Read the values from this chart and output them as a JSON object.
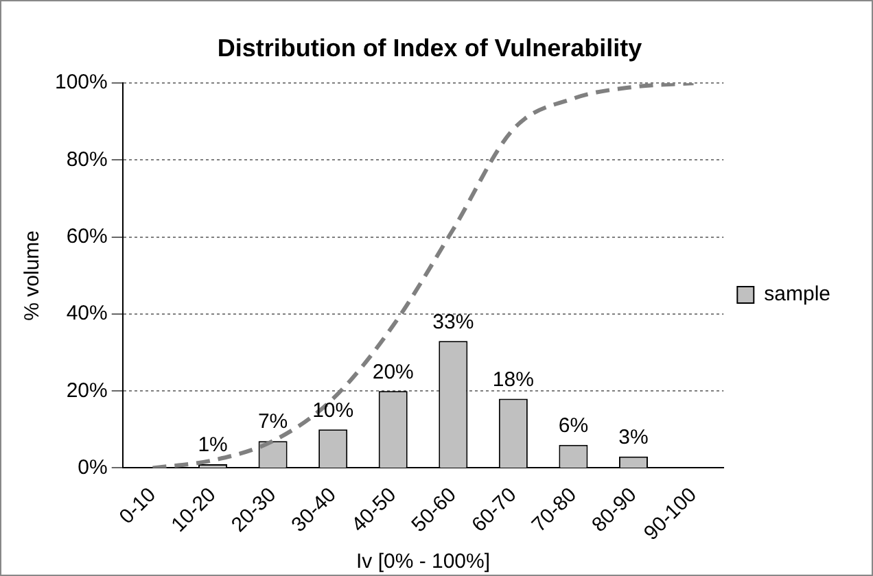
{
  "chart_data": {
    "type": "bar",
    "title": "Distribution of Index of Vulnerability",
    "xlabel": "Iv [0% - 100%]",
    "ylabel": "% volume",
    "categories": [
      "0-10",
      "10-20",
      "20-30",
      "30-40",
      "40-50",
      "50-60",
      "60-70",
      "70-80",
      "80-90",
      "90-100"
    ],
    "series": [
      {
        "name": "sample",
        "color": "#c0c0c0",
        "values": [
          0,
          1,
          7,
          10,
          20,
          33,
          18,
          6,
          3,
          0
        ],
        "value_labels": [
          null,
          "1%",
          "7%",
          "10%",
          "20%",
          "33%",
          "18%",
          "6%",
          "3%",
          null
        ]
      },
      {
        "type": "line",
        "color": "#808080",
        "line_style": "dashed",
        "marker": "none",
        "values": [
          0,
          2,
          7,
          18,
          37,
          62,
          88,
          96,
          99,
          100
        ]
      }
    ],
    "ylim": [
      0,
      100
    ],
    "yticks": [
      {
        "value": 0,
        "label": "0%"
      },
      {
        "value": 20,
        "label": "20%"
      },
      {
        "value": 40,
        "label": "40%"
      },
      {
        "value": 60,
        "label": "60%"
      },
      {
        "value": 80,
        "label": "80%"
      },
      {
        "value": 100,
        "label": "100%"
      }
    ],
    "grid": "y",
    "legend": "right"
  }
}
